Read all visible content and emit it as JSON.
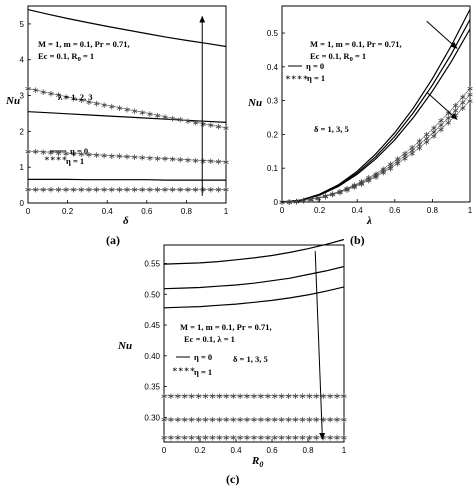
{
  "chart_data": [
    {
      "type": "line",
      "panel_label": "(a)",
      "xlabel": "δ",
      "ylabel": "Nu",
      "xlim": [
        0,
        1
      ],
      "ylim": [
        0,
        5.5
      ],
      "x_ticks": [
        0,
        0.2,
        0.4,
        0.6,
        0.8,
        1
      ],
      "x_tick_labels": [
        "0",
        "0.2",
        "0.4",
        "0.6",
        "0.8",
        "1"
      ],
      "y_ticks": [
        0,
        1,
        2,
        3,
        4,
        5
      ],
      "y_tick_labels": [
        "0",
        "1",
        "2",
        "3",
        "4",
        "5"
      ],
      "params_line1": "M = 1, m = 0.1, Pr = 0.71,",
      "params_line2": "Ec = 0.1, R",
      "params_line2_sub": "0",
      "params_line2_tail": " = 1",
      "varying": "λ = 1, 2, 3",
      "legend": [
        {
          "text": "η = 0",
          "style": "solid"
        },
        {
          "text": "η = 1",
          "style": "starred"
        }
      ],
      "x": [
        0,
        0.1,
        0.2,
        0.3,
        0.4,
        0.5,
        0.6,
        0.7,
        0.8,
        0.9,
        1.0
      ],
      "series": [
        {
          "style": "solid",
          "values": [
            5.4,
            5.27,
            5.15,
            5.04,
            4.93,
            4.83,
            4.73,
            4.63,
            4.54,
            4.46,
            4.37
          ]
        },
        {
          "style": "solid",
          "values": [
            2.55,
            2.52,
            2.49,
            2.46,
            2.43,
            2.4,
            2.37,
            2.34,
            2.31,
            2.28,
            2.25
          ]
        },
        {
          "style": "solid",
          "values": [
            0.66,
            0.66,
            0.66,
            0.65,
            0.65,
            0.65,
            0.65,
            0.64,
            0.64,
            0.64,
            0.64
          ]
        },
        {
          "style": "starred",
          "values": [
            3.2,
            3.08,
            2.96,
            2.84,
            2.73,
            2.62,
            2.51,
            2.4,
            2.3,
            2.2,
            2.1
          ]
        },
        {
          "style": "starred",
          "values": [
            1.45,
            1.42,
            1.39,
            1.36,
            1.33,
            1.3,
            1.27,
            1.24,
            1.21,
            1.18,
            1.15
          ]
        },
        {
          "style": "starred",
          "values": [
            0.38,
            0.38,
            0.38,
            0.38,
            0.38,
            0.38,
            0.38,
            0.38,
            0.38,
            0.38,
            0.38
          ]
        }
      ],
      "arrows": [
        {
          "from": [
            0.88,
            0.2
          ],
          "to": [
            0.88,
            5.2
          ]
        }
      ]
    },
    {
      "type": "line",
      "panel_label": "(b)",
      "xlabel": "λ",
      "ylabel": "Nu",
      "xlim": [
        0,
        1
      ],
      "ylim": [
        0,
        0.58
      ],
      "x_ticks": [
        0,
        0.2,
        0.4,
        0.6,
        0.8,
        1
      ],
      "x_tick_labels": [
        "0",
        "0.2",
        "0.4",
        "0.6",
        "0.8",
        "1"
      ],
      "y_ticks": [
        0,
        0.1,
        0.2,
        0.3,
        0.4,
        0.5
      ],
      "y_tick_labels": [
        "0",
        "0.1",
        "0.2",
        "0.3",
        "0.4",
        "0.5"
      ],
      "params_line1": "M = 1, m = 0.1, Pr = 0.71,",
      "params_line2": "Ec = 0.1, R",
      "params_line2_sub": "0",
      "params_line2_tail": " = 1",
      "varying": "δ = 1, 3, 5",
      "legend": [
        {
          "text": "η = 0",
          "style": "solid"
        },
        {
          "text": "η = 1",
          "style": "starred"
        }
      ],
      "x": [
        0,
        0.1,
        0.2,
        0.3,
        0.4,
        0.5,
        0.6,
        0.7,
        0.8,
        0.9,
        1.0
      ],
      "series": [
        {
          "style": "solid",
          "values": [
            0.0,
            0.0057,
            0.023,
            0.051,
            0.091,
            0.143,
            0.205,
            0.279,
            0.365,
            0.462,
            0.57
          ]
        },
        {
          "style": "solid",
          "values": [
            0.0,
            0.0054,
            0.022,
            0.049,
            0.086,
            0.135,
            0.194,
            0.265,
            0.346,
            0.437,
            0.54
          ]
        },
        {
          "style": "solid",
          "values": [
            0.0,
            0.0051,
            0.02,
            0.046,
            0.082,
            0.128,
            0.184,
            0.251,
            0.328,
            0.415,
            0.512
          ]
        },
        {
          "style": "starred",
          "values": [
            0.0,
            0.0034,
            0.0134,
            0.03,
            0.054,
            0.084,
            0.121,
            0.165,
            0.215,
            0.272,
            0.336
          ]
        },
        {
          "style": "starred",
          "values": [
            0.0,
            0.0032,
            0.0127,
            0.029,
            0.051,
            0.079,
            0.114,
            0.156,
            0.203,
            0.257,
            0.318
          ]
        },
        {
          "style": "starred",
          "values": [
            0.0,
            0.003,
            0.012,
            0.027,
            0.048,
            0.075,
            0.108,
            0.147,
            0.192,
            0.243,
            0.3
          ]
        }
      ],
      "arrows": [
        {
          "from": [
            0.77,
            0.535
          ],
          "to": [
            0.93,
            0.455
          ]
        },
        {
          "from": [
            0.77,
            0.325
          ],
          "to": [
            0.93,
            0.245
          ]
        }
      ]
    },
    {
      "type": "line",
      "panel_label": "(c)",
      "xlabel": "R",
      "xlabel_sub": "0",
      "ylabel": "Nu",
      "xlim": [
        0,
        1
      ],
      "ylim": [
        0.26,
        0.58
      ],
      "x_ticks": [
        0,
        0.2,
        0.4,
        0.6,
        0.8,
        1
      ],
      "x_tick_labels": [
        "0",
        "0.2",
        "0.4",
        "0.6",
        "0.8",
        "1"
      ],
      "y_ticks": [
        0.3,
        0.35,
        0.4,
        0.45,
        0.5,
        0.55
      ],
      "y_tick_labels": [
        "0.30",
        "0.35",
        "0.40",
        "0.45",
        "0.50",
        "0.55"
      ],
      "params_line1": "M = 1, m = 0.1, Pr = 0.71,",
      "params_line2": "Ec = 0.1, λ = 1",
      "params_line2_sub": "",
      "params_line2_tail": "",
      "varying": "δ = 1, 3, 5",
      "legend": [
        {
          "text": "η = 0",
          "style": "solid"
        },
        {
          "text": "η = 1",
          "style": "starred"
        }
      ],
      "x": [
        0,
        0.1,
        0.2,
        0.3,
        0.4,
        0.5,
        0.6,
        0.7,
        0.8,
        0.9,
        1.0
      ],
      "series": [
        {
          "style": "solid",
          "values": [
            0.549,
            0.55,
            0.551,
            0.553,
            0.556,
            0.559,
            0.563,
            0.568,
            0.574,
            0.581,
            0.589
          ]
        },
        {
          "style": "solid",
          "values": [
            0.509,
            0.51,
            0.511,
            0.513,
            0.515,
            0.518,
            0.522,
            0.526,
            0.532,
            0.538,
            0.545
          ]
        },
        {
          "style": "solid",
          "values": [
            0.478,
            0.479,
            0.48,
            0.482,
            0.484,
            0.487,
            0.49,
            0.494,
            0.499,
            0.505,
            0.512
          ]
        },
        {
          "style": "starred",
          "values": [
            0.335,
            0.335,
            0.335,
            0.335,
            0.335,
            0.335,
            0.335,
            0.335,
            0.335,
            0.335,
            0.335
          ]
        },
        {
          "style": "starred",
          "values": [
            0.297,
            0.297,
            0.297,
            0.297,
            0.297,
            0.297,
            0.297,
            0.297,
            0.297,
            0.297,
            0.297
          ]
        },
        {
          "style": "starred",
          "values": [
            0.268,
            0.268,
            0.268,
            0.268,
            0.268,
            0.268,
            0.268,
            0.268,
            0.268,
            0.268,
            0.268
          ]
        }
      ],
      "arrows": [
        {
          "from": [
            0.84,
            0.57
          ],
          "to": [
            0.88,
            0.265
          ]
        }
      ]
    }
  ]
}
